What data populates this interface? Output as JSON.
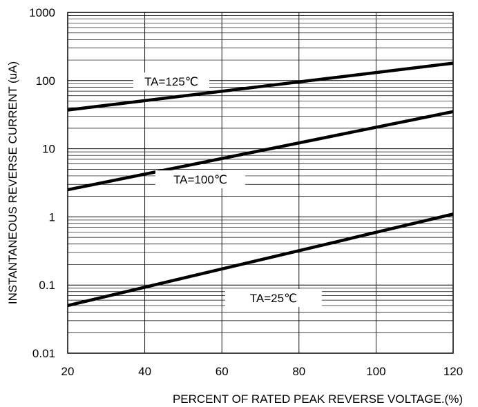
{
  "chart_data": {
    "type": "line",
    "title": "",
    "xlabel": "PERCENT OF RATED PEAK REVERSE VOLTAGE.(%)",
    "ylabel": "INSTANTANEOUS REVERSE CURRENT (uA)",
    "xlim": [
      20,
      120
    ],
    "ylim": [
      0.01,
      1000
    ],
    "yscale": "log",
    "x_ticks": [
      20,
      40,
      60,
      80,
      100,
      120
    ],
    "x_tick_labels": [
      "20",
      "40",
      "60",
      "80",
      "100",
      "120"
    ],
    "y_ticks": [
      0.01,
      0.1,
      1,
      10,
      100,
      1000
    ],
    "y_tick_labels": [
      "0.01",
      "0.1",
      "1",
      "10",
      "100",
      "1000"
    ],
    "grid": true,
    "series": [
      {
        "name": "TA=125℃",
        "x": [
          20,
          120
        ],
        "y": [
          37,
          180
        ]
      },
      {
        "name": "TA=100℃",
        "x": [
          20,
          120
        ],
        "y": [
          2.5,
          35
        ]
      },
      {
        "name": "TA=25℃",
        "x": [
          20,
          120
        ],
        "y": [
          0.05,
          1.1
        ]
      }
    ]
  }
}
